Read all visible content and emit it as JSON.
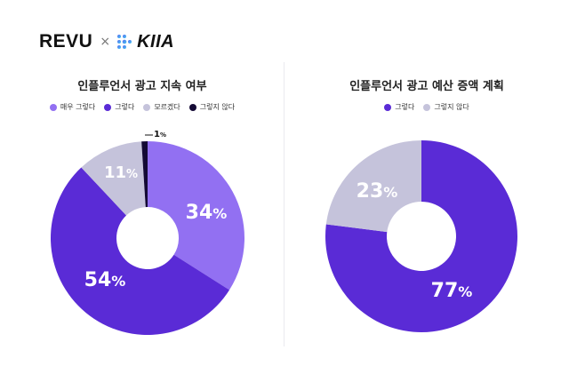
{
  "logos": {
    "left": "REVU",
    "separator": "×",
    "right": "KIIA"
  },
  "colors": {
    "very_agree": "#9270f2",
    "agree": "#5a2bd6",
    "unsure": "#c5c3db",
    "disagree": "#140a35",
    "background": "#ffffff"
  },
  "chart_data": [
    {
      "type": "pie",
      "title": "인플루언서 광고 지속 여부",
      "legend_position": "top",
      "categories": [
        "매우 그렇다",
        "그렇다",
        "모르겠다",
        "그렇지 않다"
      ],
      "values": [
        34,
        54,
        11,
        1
      ],
      "labels": [
        "34%",
        "54%",
        "11%",
        "1%"
      ],
      "colors": [
        "#9270f2",
        "#5a2bd6",
        "#c5c3db",
        "#140a35"
      ],
      "unit": "%"
    },
    {
      "type": "pie",
      "title": "인플루언서 광고 예산 증액 계획",
      "legend_position": "top",
      "categories": [
        "그렇다",
        "그렇지 않다"
      ],
      "values": [
        77,
        23
      ],
      "labels": [
        "77%",
        "23%"
      ],
      "colors": [
        "#5a2bd6",
        "#c5c3db"
      ],
      "unit": "%"
    }
  ]
}
